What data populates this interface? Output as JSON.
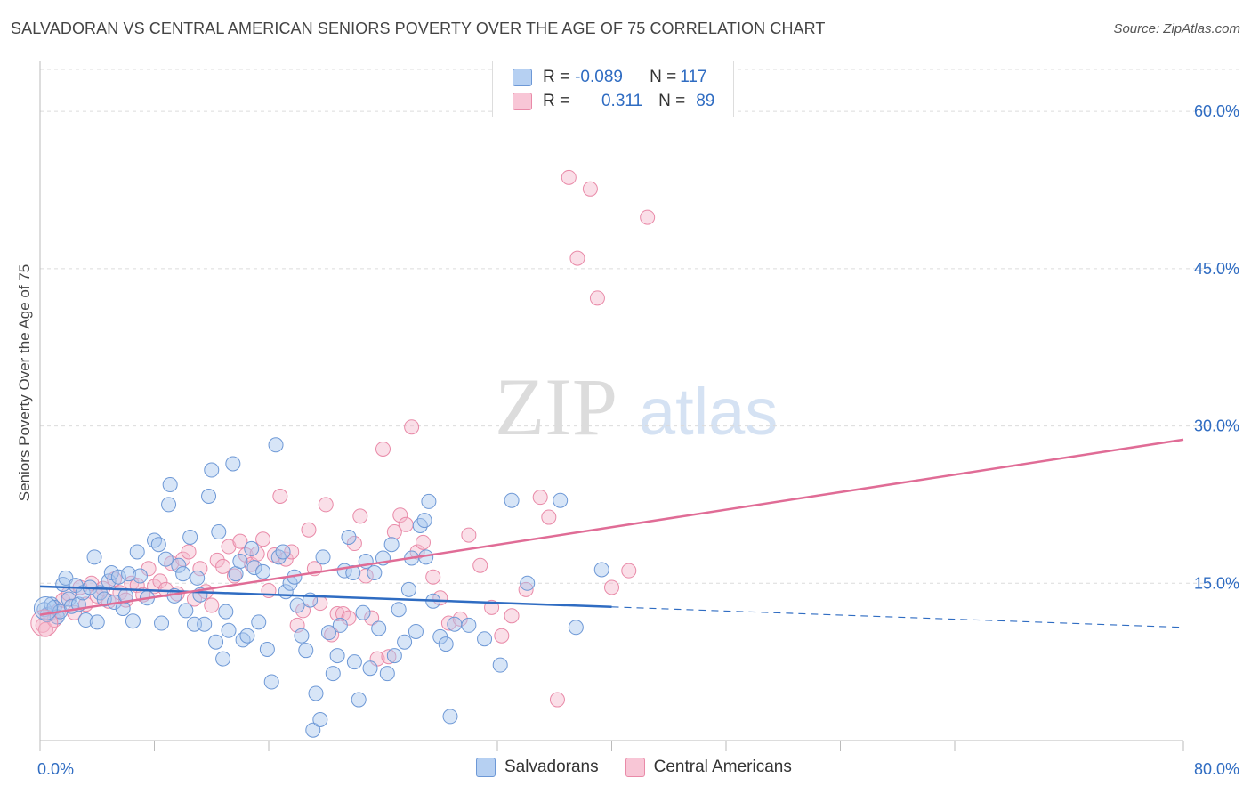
{
  "title": "SALVADORAN VS CENTRAL AMERICAN SENIORS POVERTY OVER THE AGE OF 75 CORRELATION CHART",
  "source": "Source: ZipAtlas.com",
  "watermark": {
    "zip": "ZIP",
    "atlas": "atlas"
  },
  "legend": {
    "row1": {
      "r_label": "R = ",
      "r_value": "-0.089",
      "n_label": "N = ",
      "n_value": "117"
    },
    "row2": {
      "r_label": "R = ",
      "r_value": "0.311",
      "n_label": "N = ",
      "n_value": "89"
    }
  },
  "colors": {
    "blue_fill": "#a7c5ee",
    "blue_stroke": "#6d98d6",
    "blue_line": "#2f6cc2",
    "pink_fill": "#f5b8cb",
    "pink_stroke": "#e98aa8",
    "pink_line": "#e06c96",
    "axis_label": "#2f6cc2",
    "grid": "#dcdcdc"
  },
  "chart_data": {
    "type": "scatter",
    "title": "SALVADORAN VS CENTRAL AMERICAN SENIORS POVERTY OVER THE AGE OF 75 CORRELATION CHART",
    "xlabel": "",
    "ylabel": "Seniors Poverty Over the Age of 75",
    "xlim": [
      0,
      80
    ],
    "ylim": [
      0,
      64
    ],
    "x_tick_labels": [
      "0.0%",
      "80.0%"
    ],
    "y_ticks": [
      15,
      30,
      45,
      60
    ],
    "y_tick_labels": [
      "15.0%",
      "30.0%",
      "45.0%",
      "60.0%"
    ],
    "grid": true,
    "legend_position": "top-center",
    "series": [
      {
        "name": "Salvadorans",
        "r": -0.089,
        "n": 117,
        "trend": {
          "x0": 0,
          "y0": 14.7,
          "x_solid_end": 40,
          "x1": 80,
          "y1": 10.8
        },
        "points": [
          [
            0.3,
            12.5
          ],
          [
            0.5,
            12.0
          ],
          [
            0.8,
            13.0
          ],
          [
            1.0,
            12.7
          ],
          [
            1.2,
            11.8
          ],
          [
            1.4,
            12.3
          ],
          [
            1.6,
            14.9
          ],
          [
            1.8,
            15.5
          ],
          [
            2.0,
            13.5
          ],
          [
            2.2,
            12.8
          ],
          [
            2.5,
            14.8
          ],
          [
            2.7,
            13.0
          ],
          [
            3.0,
            14.1
          ],
          [
            3.2,
            11.5
          ],
          [
            3.5,
            14.6
          ],
          [
            3.8,
            17.5
          ],
          [
            4.0,
            11.3
          ],
          [
            4.2,
            14.1
          ],
          [
            4.5,
            13.5
          ],
          [
            4.8,
            15.2
          ],
          [
            5.0,
            16.0
          ],
          [
            5.2,
            13.2
          ],
          [
            5.5,
            15.6
          ],
          [
            5.8,
            12.6
          ],
          [
            6.0,
            13.8
          ],
          [
            6.2,
            15.9
          ],
          [
            6.5,
            11.4
          ],
          [
            6.8,
            18.0
          ],
          [
            7.0,
            15.7
          ],
          [
            7.5,
            13.6
          ],
          [
            8.0,
            19.1
          ],
          [
            8.3,
            18.7
          ],
          [
            8.5,
            11.2
          ],
          [
            8.8,
            17.3
          ],
          [
            9.0,
            22.5
          ],
          [
            9.1,
            24.4
          ],
          [
            9.4,
            13.8
          ],
          [
            9.7,
            16.7
          ],
          [
            10.0,
            15.9
          ],
          [
            10.2,
            12.4
          ],
          [
            10.5,
            19.4
          ],
          [
            10.8,
            11.1
          ],
          [
            11.0,
            15.5
          ],
          [
            11.2,
            13.9
          ],
          [
            11.5,
            11.1
          ],
          [
            11.8,
            23.3
          ],
          [
            12.0,
            25.8
          ],
          [
            12.3,
            9.4
          ],
          [
            12.5,
            19.9
          ],
          [
            12.8,
            7.8
          ],
          [
            13.0,
            12.3
          ],
          [
            13.2,
            10.5
          ],
          [
            13.5,
            26.4
          ],
          [
            13.7,
            15.9
          ],
          [
            14.0,
            17.1
          ],
          [
            14.2,
            9.6
          ],
          [
            14.5,
            10.0
          ],
          [
            14.8,
            18.3
          ],
          [
            15.0,
            16.5
          ],
          [
            15.3,
            11.3
          ],
          [
            15.6,
            16.1
          ],
          [
            15.9,
            8.7
          ],
          [
            16.2,
            5.6
          ],
          [
            16.5,
            28.2
          ],
          [
            16.7,
            17.5
          ],
          [
            17.0,
            18.0
          ],
          [
            17.2,
            14.2
          ],
          [
            17.5,
            15.0
          ],
          [
            17.8,
            15.6
          ],
          [
            18.0,
            12.9
          ],
          [
            18.3,
            10.0
          ],
          [
            18.6,
            8.6
          ],
          [
            18.9,
            13.4
          ],
          [
            19.1,
            1.0
          ],
          [
            19.3,
            4.5
          ],
          [
            19.6,
            2.0
          ],
          [
            19.8,
            17.5
          ],
          [
            20.2,
            10.3
          ],
          [
            20.5,
            6.4
          ],
          [
            20.8,
            8.1
          ],
          [
            21.0,
            11.0
          ],
          [
            21.3,
            16.2
          ],
          [
            21.6,
            19.4
          ],
          [
            21.9,
            16.0
          ],
          [
            22.0,
            7.5
          ],
          [
            22.3,
            3.9
          ],
          [
            22.6,
            12.2
          ],
          [
            22.8,
            17.1
          ],
          [
            23.1,
            6.9
          ],
          [
            23.4,
            16.0
          ],
          [
            23.7,
            10.7
          ],
          [
            24.0,
            17.4
          ],
          [
            24.3,
            6.4
          ],
          [
            24.6,
            18.7
          ],
          [
            24.8,
            8.1
          ],
          [
            25.1,
            12.5
          ],
          [
            25.5,
            9.4
          ],
          [
            25.8,
            14.4
          ],
          [
            26.0,
            17.4
          ],
          [
            26.3,
            10.4
          ],
          [
            26.6,
            20.5
          ],
          [
            26.9,
            21.0
          ],
          [
            27.2,
            22.8
          ],
          [
            27.5,
            13.3
          ],
          [
            28.0,
            9.9
          ],
          [
            28.4,
            9.2
          ],
          [
            28.7,
            2.3
          ],
          [
            29.0,
            11.1
          ],
          [
            30.0,
            11.0
          ],
          [
            31.1,
            9.7
          ],
          [
            32.2,
            7.2
          ],
          [
            33.0,
            22.9
          ],
          [
            34.1,
            15.0
          ],
          [
            36.4,
            22.9
          ],
          [
            37.5,
            10.8
          ],
          [
            39.3,
            16.3
          ],
          [
            27.0,
            17.5
          ]
        ]
      },
      {
        "name": "Central Americans",
        "r": 0.311,
        "n": 89,
        "trend": {
          "x0": 0,
          "y0": 12.0,
          "x1": 80,
          "y1": 28.7
        },
        "points": [
          [
            0.2,
            11.0
          ],
          [
            0.4,
            10.6
          ],
          [
            0.7,
            12.1
          ],
          [
            1.0,
            11.5
          ],
          [
            1.3,
            12.4
          ],
          [
            1.6,
            13.4
          ],
          [
            2.0,
            14.0
          ],
          [
            2.4,
            12.2
          ],
          [
            2.8,
            14.6
          ],
          [
            3.2,
            13.0
          ],
          [
            3.6,
            15.0
          ],
          [
            4.0,
            13.8
          ],
          [
            4.4,
            14.5
          ],
          [
            4.8,
            13.3
          ],
          [
            5.2,
            15.4
          ],
          [
            5.6,
            14.1
          ],
          [
            6.0,
            13.4
          ],
          [
            6.4,
            15.0
          ],
          [
            6.8,
            14.8
          ],
          [
            7.2,
            13.9
          ],
          [
            7.6,
            16.4
          ],
          [
            8.0,
            14.7
          ],
          [
            8.4,
            15.2
          ],
          [
            8.8,
            14.4
          ],
          [
            9.2,
            16.9
          ],
          [
            9.6,
            14.0
          ],
          [
            10.0,
            17.3
          ],
          [
            10.4,
            18.0
          ],
          [
            10.8,
            13.5
          ],
          [
            11.2,
            16.4
          ],
          [
            11.6,
            14.2
          ],
          [
            12.0,
            12.9
          ],
          [
            12.4,
            17.2
          ],
          [
            12.8,
            16.6
          ],
          [
            13.2,
            18.5
          ],
          [
            13.6,
            15.7
          ],
          [
            14.0,
            19.0
          ],
          [
            14.4,
            17.7
          ],
          [
            14.8,
            16.8
          ],
          [
            15.2,
            17.8
          ],
          [
            15.6,
            19.2
          ],
          [
            16.0,
            14.3
          ],
          [
            16.4,
            17.7
          ],
          [
            16.8,
            23.3
          ],
          [
            17.2,
            17.3
          ],
          [
            17.6,
            18.0
          ],
          [
            18.0,
            11.0
          ],
          [
            18.4,
            12.4
          ],
          [
            18.8,
            20.1
          ],
          [
            19.2,
            16.4
          ],
          [
            19.6,
            13.1
          ],
          [
            20.0,
            22.5
          ],
          [
            20.4,
            10.1
          ],
          [
            20.8,
            12.1
          ],
          [
            21.2,
            12.1
          ],
          [
            21.6,
            11.7
          ],
          [
            22.0,
            18.8
          ],
          [
            22.4,
            21.4
          ],
          [
            22.8,
            15.7
          ],
          [
            23.2,
            11.7
          ],
          [
            23.6,
            7.8
          ],
          [
            24.0,
            27.8
          ],
          [
            24.4,
            8.0
          ],
          [
            24.8,
            19.9
          ],
          [
            25.2,
            21.5
          ],
          [
            25.6,
            20.6
          ],
          [
            26.0,
            29.9
          ],
          [
            26.4,
            18.0
          ],
          [
            26.8,
            18.9
          ],
          [
            27.5,
            15.6
          ],
          [
            28.0,
            13.6
          ],
          [
            28.6,
            11.2
          ],
          [
            29.4,
            11.6
          ],
          [
            30.0,
            19.6
          ],
          [
            30.8,
            16.7
          ],
          [
            31.6,
            12.7
          ],
          [
            32.3,
            10.0
          ],
          [
            33.0,
            11.9
          ],
          [
            34.0,
            14.4
          ],
          [
            35.0,
            23.2
          ],
          [
            35.6,
            21.3
          ],
          [
            36.2,
            3.9
          ],
          [
            37.0,
            53.7
          ],
          [
            37.6,
            46.0
          ],
          [
            38.5,
            52.6
          ],
          [
            39.0,
            42.2
          ],
          [
            40.0,
            14.6
          ],
          [
            41.2,
            16.2
          ],
          [
            42.5,
            49.9
          ]
        ]
      }
    ]
  },
  "bottom_legend": {
    "series1": "Salvadorans",
    "series2": "Central Americans"
  }
}
